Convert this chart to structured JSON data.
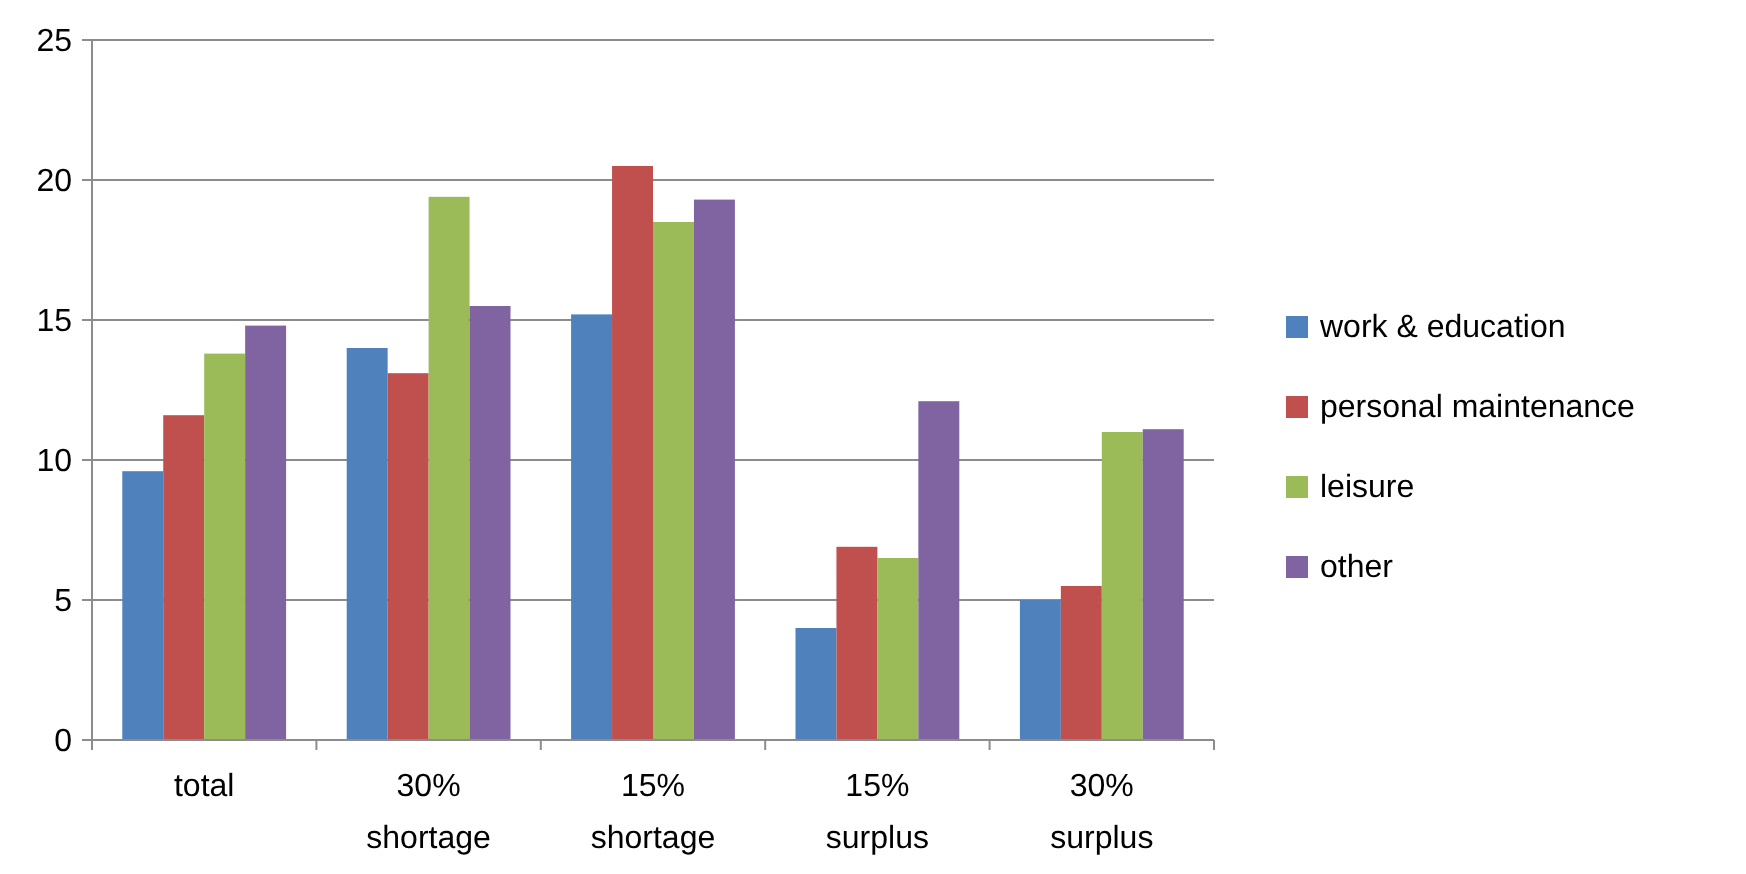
{
  "chart_data": {
    "type": "bar",
    "categories": [
      "total",
      "30% shortage",
      "15% shortage",
      "15% surplus",
      "30% surplus"
    ],
    "series": [
      {
        "name": "work & education",
        "color": "#4f81bd",
        "values": [
          9.6,
          14.0,
          15.2,
          4.0,
          5.0
        ]
      },
      {
        "name": "personal maintenance",
        "color": "#c0504d",
        "values": [
          11.6,
          13.1,
          20.5,
          6.9,
          5.5
        ]
      },
      {
        "name": "leisure",
        "color": "#9bbb59",
        "values": [
          13.8,
          19.4,
          18.5,
          6.5,
          11.0
        ]
      },
      {
        "name": "other",
        "color": "#8064a2",
        "values": [
          14.8,
          15.5,
          19.3,
          12.1,
          11.1
        ]
      }
    ],
    "ylim": [
      0,
      25
    ],
    "yticks": [
      0,
      5,
      10,
      15,
      20,
      25
    ],
    "grid": "y",
    "legend": "right"
  }
}
